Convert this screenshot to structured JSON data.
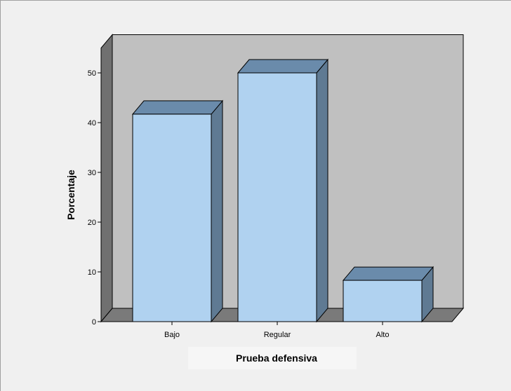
{
  "chart_data": {
    "type": "bar",
    "style": "3d",
    "categories": [
      "Bajo",
      "Regular",
      "Alto"
    ],
    "values": [
      41.7,
      50.0,
      8.3
    ],
    "xlabel": "Prueba defensiva",
    "ylabel": "Porcentaje",
    "ylim": [
      0,
      50
    ],
    "yticks": [
      0,
      10,
      20,
      30,
      40,
      50
    ],
    "grid": false,
    "legend": "none",
    "colors": {
      "bar_front": "#b0d2f0",
      "bar_top": "#6a8bab",
      "bar_side": "#5f7a93",
      "back_wall": "#c0c0c0",
      "floor": "#7a7a7a",
      "left_wall": "#707070",
      "background": "#f0f0f0"
    }
  }
}
